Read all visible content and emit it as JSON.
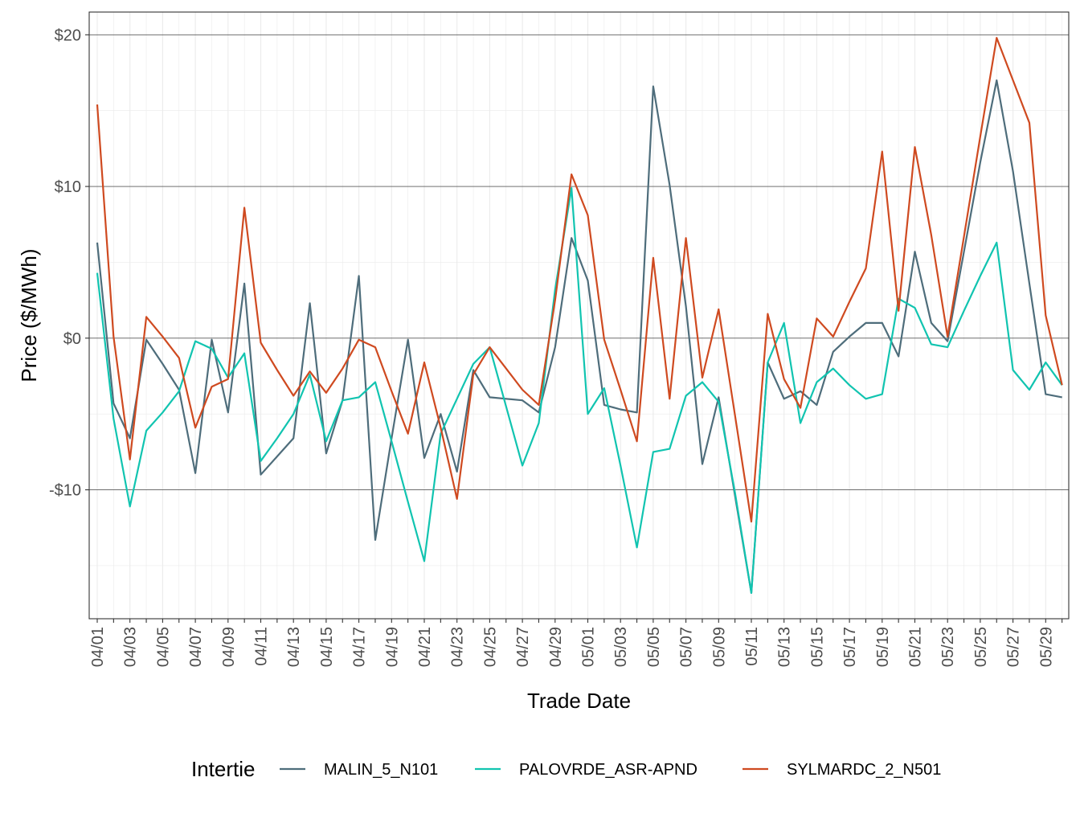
{
  "chart_data": {
    "type": "line",
    "xlabel": "Trade Date",
    "ylabel": "Price ($/MWh)",
    "legend_title": "Intertie",
    "legend_position": "bottom",
    "grid": true,
    "ylim": [
      -18.5,
      21.5
    ],
    "y_ticks": [
      -10,
      0,
      10,
      20
    ],
    "y_tick_labels": [
      "-$10",
      "$0",
      "$10",
      "$20"
    ],
    "x_tick_labels": [
      "04/01",
      "04/03",
      "04/05",
      "04/07",
      "04/09",
      "04/11",
      "04/13",
      "04/15",
      "04/17",
      "04/19",
      "04/21",
      "04/23",
      "04/25",
      "04/27",
      "04/29",
      "05/01",
      "05/03",
      "05/05",
      "05/07",
      "05/09",
      "05/11",
      "05/13",
      "05/15",
      "05/17",
      "05/19",
      "05/21",
      "05/23",
      "05/25",
      "05/27",
      "05/29"
    ],
    "x": [
      "04/01",
      "04/02",
      "04/03",
      "04/04",
      "04/05",
      "04/06",
      "04/07",
      "04/08",
      "04/09",
      "04/10",
      "04/11",
      "04/12",
      "04/13",
      "04/14",
      "04/15",
      "04/16",
      "04/17",
      "04/18",
      "04/19",
      "04/20",
      "04/21",
      "04/22",
      "04/23",
      "04/24",
      "04/25",
      "04/26",
      "04/27",
      "04/28",
      "04/29",
      "04/30",
      "05/01",
      "05/02",
      "05/03",
      "05/04",
      "05/05",
      "05/06",
      "05/07",
      "05/08",
      "05/09",
      "05/10",
      "05/11",
      "05/12",
      "05/13",
      "05/14",
      "05/15",
      "05/16",
      "05/17",
      "05/18",
      "05/19",
      "05/20",
      "05/21",
      "05/22",
      "05/23",
      "05/24",
      "05/25",
      "05/26",
      "05/27",
      "05/28",
      "05/29",
      "05/30"
    ],
    "series": [
      {
        "name": "MALIN_5_N101",
        "color": "#4e6d7b",
        "values": [
          6.3,
          -4.3,
          -6.6,
          -0.1,
          -1.7,
          -3.4,
          -8.9,
          -0.1,
          -4.9,
          3.6,
          -9.0,
          -7.8,
          -6.6,
          2.3,
          -7.6,
          -4.1,
          4.1,
          -13.3,
          -6.6,
          -0.1,
          -7.9,
          -5.0,
          -8.8,
          -2.1,
          -3.9,
          -4.0,
          -4.1,
          -4.9,
          -0.6,
          6.6,
          3.8,
          -4.4,
          -4.7,
          -4.9,
          16.6,
          10.1,
          2.1,
          -8.3,
          -3.9,
          -10.4,
          -16.8,
          -1.6,
          -4.0,
          -3.5,
          -4.4,
          -0.9,
          0.1,
          1.0,
          1.0,
          -1.2,
          5.7,
          1.0,
          -0.2,
          5.7,
          11.6,
          17.0,
          11.0,
          3.6,
          -3.7,
          -3.9
        ]
      },
      {
        "name": "PALOVRDE_ASR-APND",
        "color": "#11c4b0",
        "values": [
          4.3,
          -5.3,
          -11.1,
          -6.1,
          -4.9,
          -3.5,
          -0.2,
          -0.7,
          -2.6,
          -1.0,
          -8.1,
          -6.6,
          -5.0,
          -2.4,
          -6.8,
          -4.1,
          -3.9,
          -2.9,
          -6.8,
          -10.8,
          -14.7,
          -6.3,
          -4.0,
          -1.7,
          -0.6,
          -4.5,
          -8.4,
          -5.6,
          3.2,
          9.9,
          -5.0,
          -3.3,
          -8.4,
          -13.8,
          -7.5,
          -7.3,
          -3.8,
          -2.9,
          -4.2,
          -10.2,
          -16.8,
          -1.6,
          1.0,
          -5.6,
          -2.9,
          -2.0,
          -3.1,
          -4.0,
          -3.7,
          2.6,
          2.0,
          -0.4,
          -0.6,
          1.8,
          4.1,
          6.3,
          -2.1,
          -3.4,
          -1.6,
          -3.1
        ]
      },
      {
        "name": "SYLMARDC_2_N501",
        "color": "#cf4a20",
        "values": [
          15.4,
          0.1,
          -8.0,
          1.4,
          0.1,
          -1.3,
          -5.9,
          -3.2,
          -2.7,
          8.6,
          -0.3,
          -2.1,
          -3.8,
          -2.2,
          -3.6,
          -2.0,
          -0.1,
          -0.6,
          -3.5,
          -6.3,
          -1.6,
          -5.9,
          -10.6,
          -2.4,
          -0.6,
          -2.0,
          -3.4,
          -4.4,
          2.5,
          10.8,
          8.1,
          -0.1,
          -3.4,
          -6.8,
          5.3,
          -4.0,
          6.6,
          -2.6,
          1.9,
          -5.1,
          -12.1,
          1.6,
          -2.7,
          -4.6,
          1.3,
          0.1,
          2.4,
          4.6,
          12.3,
          1.8,
          12.6,
          6.8,
          0.1,
          6.7,
          13.3,
          19.8,
          17.0,
          14.2,
          1.5,
          -3.1
        ]
      }
    ]
  }
}
